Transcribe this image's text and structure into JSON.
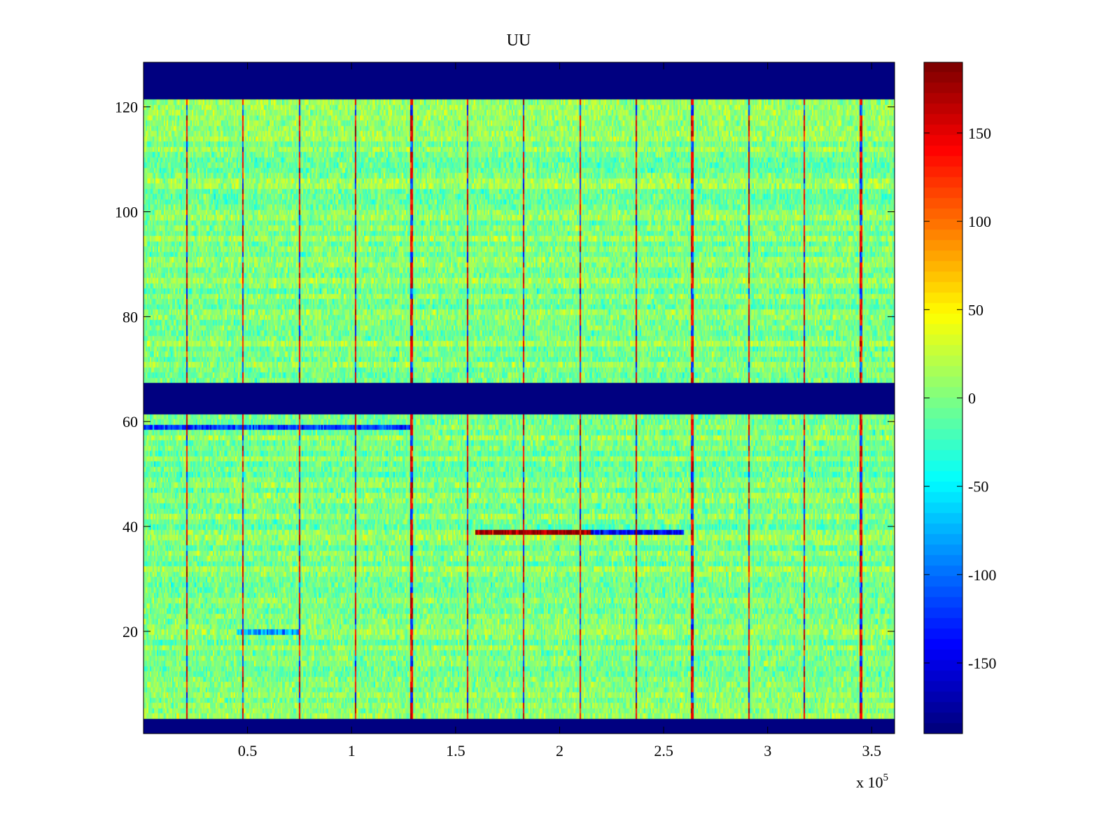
{
  "chart_data": {
    "type": "heatmap",
    "title": "UU",
    "xlabel": "",
    "ylabel": "",
    "x_exponent_label": "x 10",
    "x_exponent_power": "5",
    "xlim": [
      0,
      3.61
    ],
    "ylim": [
      0.5,
      128.5
    ],
    "x_ticks": [
      0.5,
      1,
      1.5,
      2,
      2.5,
      3,
      3.5
    ],
    "x_tick_labels": [
      "0.5",
      "1",
      "1.5",
      "2",
      "2.5",
      "3",
      "3.5"
    ],
    "y_ticks": [
      20,
      40,
      60,
      80,
      100,
      120
    ],
    "y_tick_labels": [
      "20",
      "40",
      "60",
      "80",
      "100",
      "120"
    ],
    "colormap": "jet",
    "clim": [
      -190,
      190
    ],
    "colorbar": {
      "ticks": [
        150,
        100,
        50,
        0,
        -50,
        -100,
        -150
      ],
      "tick_labels": [
        "150",
        "100",
        "50",
        "0",
        "-50",
        "-100",
        "-150"
      ]
    },
    "masked_row_ranges": [
      [
        0.5,
        3.5
      ],
      [
        61.5,
        67.5
      ],
      [
        121.5,
        128.5
      ]
    ],
    "mask_value": -190,
    "vertical_stripe_x": [
      0.21,
      0.48,
      0.75,
      1.02,
      1.29,
      1.56,
      1.83,
      2.1,
      2.37,
      2.64,
      2.91,
      3.18,
      3.45
    ],
    "noise_baseline": 0,
    "notable_rows": [
      {
        "row": 39,
        "x_range": [
          1.6,
          2.15
        ],
        "approx_value": 180
      },
      {
        "row": 39,
        "x_range": [
          2.15,
          2.6
        ],
        "approx_value": -150
      },
      {
        "row": 59,
        "x_range": [
          0,
          1.3
        ],
        "approx_value": -120
      },
      {
        "row": 20,
        "x_range": [
          0.45,
          0.75
        ],
        "approx_value": -80
      }
    ]
  }
}
